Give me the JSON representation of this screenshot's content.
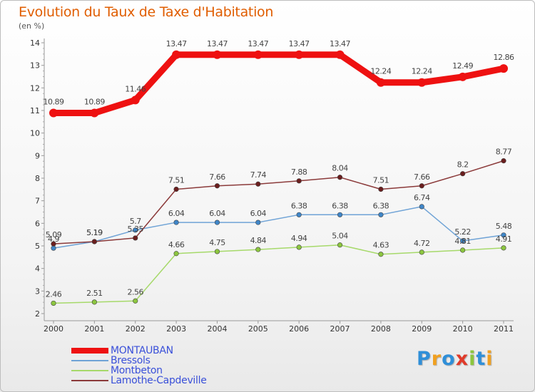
{
  "title": "Evolution du Taux de Taxe d'Habitation",
  "subtitle": "(en %)",
  "logo": {
    "text": "Proxiti",
    "letters": [
      {
        "ch": "P",
        "color": "#2f8fd8"
      },
      {
        "ch": "r",
        "color": "#f0a020"
      },
      {
        "ch": "o",
        "color": "#2f8fd8"
      },
      {
        "ch": "x",
        "color": "#e03a2a"
      },
      {
        "ch": "i",
        "color": "#8cc63f"
      },
      {
        "ch": "t",
        "color": "#2f8fd8"
      },
      {
        "ch": "i",
        "color": "#f0a020"
      }
    ]
  },
  "chart_data": {
    "type": "line",
    "x": [
      "2000",
      "2001",
      "2002",
      "2003",
      "2004",
      "2005",
      "2006",
      "2007",
      "2008",
      "2009",
      "2010",
      "2011"
    ],
    "ylim": [
      2,
      14
    ],
    "yticks": [
      2,
      3,
      4,
      5,
      6,
      7,
      8,
      9,
      10,
      11,
      12,
      13,
      14
    ],
    "grid": false,
    "legend_position": "bottom-left",
    "series": [
      {
        "name": "MONTAUBAN",
        "color": "#ee1111",
        "marker_color": "#ee1111",
        "values": [
          10.89,
          10.89,
          11.46,
          13.47,
          13.47,
          13.47,
          13.47,
          13.47,
          12.24,
          12.24,
          12.49,
          12.86
        ],
        "labels": [
          "10.89",
          "10.89",
          "11.46",
          "13.47",
          "13.47",
          "13.47",
          "13.47",
          "13.47",
          "12.24",
          "12.24",
          "12.49",
          "12.86"
        ]
      },
      {
        "name": "Bressols",
        "color": "#6fa3d6",
        "marker_color": "#3f86c8",
        "values": [
          4.9,
          5.19,
          5.7,
          6.04,
          6.04,
          6.04,
          6.38,
          6.38,
          6.38,
          6.74,
          5.22,
          5.48
        ],
        "labels": [
          "4.9",
          "5.19",
          "5.7",
          "6.04",
          "6.04",
          "6.04",
          "6.38",
          "6.38",
          "6.38",
          "6.74",
          "5.22",
          "5.48"
        ]
      },
      {
        "name": "Montbeton",
        "color": "#a6d96a",
        "marker_color": "#8cc63f",
        "values": [
          2.46,
          2.51,
          2.56,
          4.66,
          4.75,
          4.84,
          4.94,
          5.04,
          4.63,
          4.72,
          4.81,
          4.91
        ],
        "labels": [
          "2.46",
          "2.51",
          "2.56",
          "4.66",
          "4.75",
          "4.84",
          "4.94",
          "5.04",
          "4.63",
          "4.72",
          "4.81",
          "4.91"
        ]
      },
      {
        "name": "Lamothe-Capdeville",
        "color": "#8b3a3a",
        "marker_color": "#6b1e1e",
        "values": [
          5.09,
          5.19,
          5.35,
          7.51,
          7.66,
          7.74,
          7.88,
          8.04,
          7.51,
          7.66,
          8.2,
          8.77
        ],
        "labels": [
          "5.09",
          "5.19",
          "5.35",
          "7.51",
          "7.66",
          "7.74",
          "7.88",
          "8.04",
          "7.51",
          "7.66",
          "8.2",
          "8.77"
        ]
      }
    ]
  }
}
